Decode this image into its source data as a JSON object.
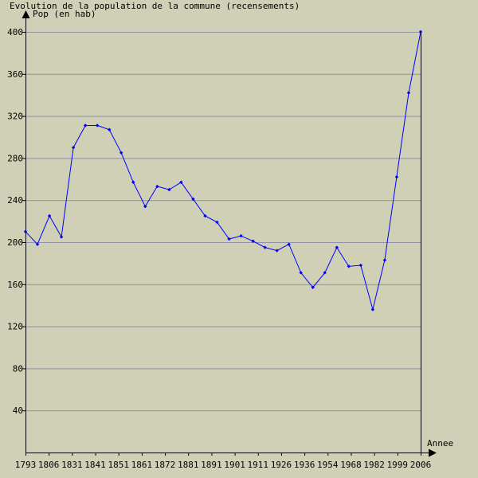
{
  "colors": {
    "background": "#d0d0b6",
    "grid": "#9090a8",
    "line": "#0000ff",
    "axis": "#000000"
  },
  "chart_data": {
    "type": "line",
    "title": "Evolution de la population de la commune (recensements)",
    "ylabel": "Pop (en hab)",
    "xlabel": "Annee",
    "ylim": [
      0,
      400
    ],
    "yticks": [
      40,
      80,
      120,
      160,
      200,
      240,
      280,
      320,
      360,
      400
    ],
    "grid": true,
    "xtick_labels": [
      "1793",
      "1806",
      "1831",
      "1841",
      "1851",
      "1861",
      "1872",
      "1881",
      "1891",
      "1901",
      "1911",
      "1926",
      "1936",
      "1954",
      "1968",
      "1982",
      "1999",
      "2006"
    ],
    "series": [
      {
        "values": [
          210,
          198,
          225,
          205,
          290,
          311,
          311,
          307,
          285,
          257,
          234,
          253,
          250,
          257,
          241,
          225,
          219,
          203,
          206,
          201,
          195,
          192,
          198,
          171,
          157,
          171,
          195,
          177,
          178,
          136,
          183,
          262,
          342,
          400
        ]
      }
    ]
  }
}
